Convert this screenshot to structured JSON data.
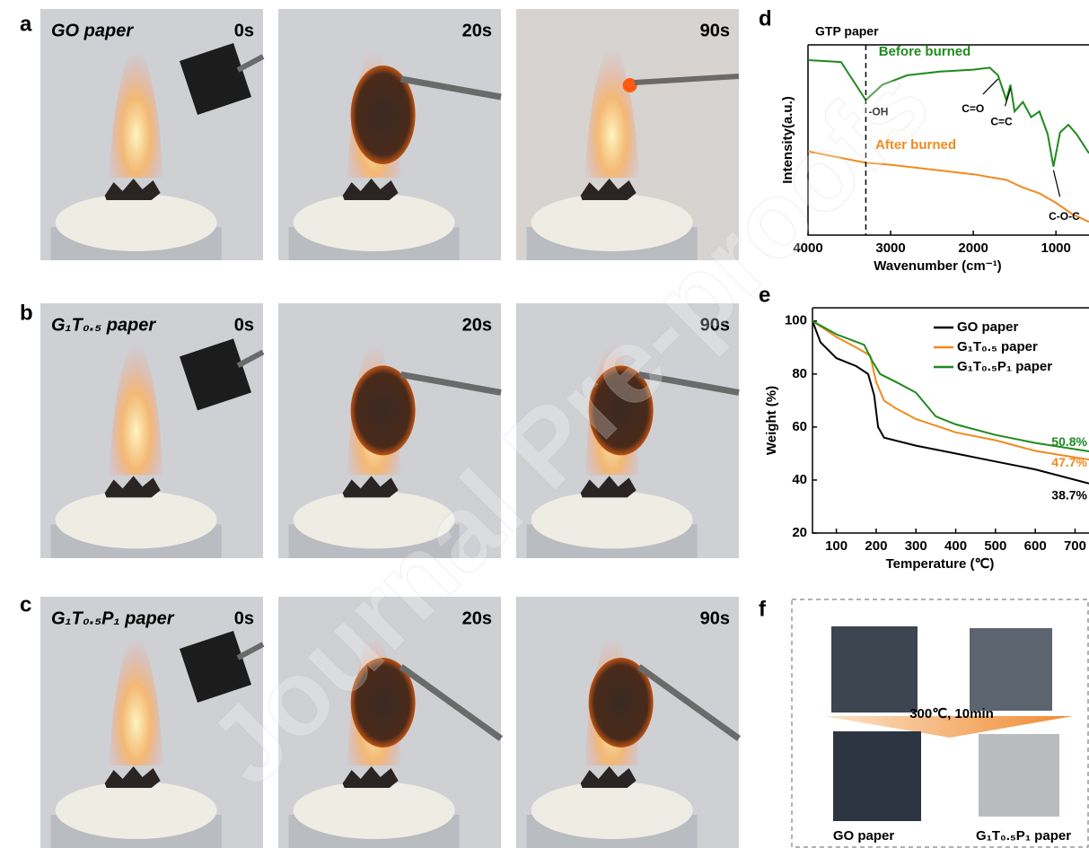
{
  "panel_letters": [
    "a",
    "b",
    "c",
    "d",
    "e",
    "f"
  ],
  "photos": {
    "rows": [
      {
        "label": "GO paper",
        "times": [
          "0s",
          "20s",
          "90s"
        ]
      },
      {
        "label": "G₁T₀.₅ paper",
        "times": [
          "0s",
          "20s",
          "90s"
        ]
      },
      {
        "label": "G₁T₀.₅P₁ paper",
        "times": [
          "0s",
          "20s",
          "90s"
        ]
      }
    ]
  },
  "chart_data": [
    {
      "type": "line",
      "title": "GTP paper",
      "x_label": "Wavenumber (cm⁻¹)",
      "y_label": "Intensity(a.u.)",
      "xlim": [
        4000,
        600
      ],
      "xticks": [
        4000,
        3000,
        2000,
        1000
      ],
      "ylim": [
        0,
        1
      ],
      "series": [
        {
          "name": "Before burned",
          "color": "#1e8a1e",
          "x": [
            4000,
            3600,
            3300,
            3100,
            2800,
            2400,
            2000,
            1800,
            1700,
            1600,
            1550,
            1500,
            1400,
            1300,
            1200,
            1100,
            1030,
            950,
            850,
            750,
            600
          ],
          "values": [
            0.92,
            0.91,
            0.71,
            0.79,
            0.84,
            0.86,
            0.87,
            0.88,
            0.84,
            0.71,
            0.79,
            0.65,
            0.7,
            0.62,
            0.65,
            0.53,
            0.36,
            0.54,
            0.58,
            0.53,
            0.43
          ]
        },
        {
          "name": "After burned",
          "color": "#f08a1c",
          "x": [
            4000,
            3300,
            3000,
            2000,
            1600,
            1400,
            1200,
            1000,
            800,
            600
          ],
          "values": [
            0.44,
            0.38,
            0.37,
            0.32,
            0.29,
            0.25,
            0.22,
            0.17,
            0.11,
            0.07
          ]
        }
      ],
      "annotations": [
        {
          "text": "-OH",
          "x": 3300
        },
        {
          "text": "C=O",
          "x": 1700
        },
        {
          "text": "C=C",
          "x": 1550
        },
        {
          "text": "C-O-C",
          "x": 1030
        }
      ]
    },
    {
      "type": "line",
      "x_label": "Temperature (℃)",
      "y_label": "Weight (%)",
      "xlim": [
        40,
        735
      ],
      "xticks": [
        100,
        200,
        300,
        400,
        500,
        600,
        700
      ],
      "ylim": [
        20,
        105
      ],
      "yticks": [
        20,
        40,
        60,
        80,
        100
      ],
      "legend": "upper right",
      "series": [
        {
          "name": "GO paper",
          "color": "#000000",
          "x": [
            40,
            60,
            100,
            150,
            180,
            195,
            205,
            220,
            300,
            400,
            500,
            600,
            735
          ],
          "values": [
            100,
            92,
            86,
            83,
            80,
            72,
            60,
            56,
            53,
            50,
            47,
            44,
            38.7
          ],
          "end_label": {
            "text": "38.7%",
            "value": 38.7
          }
        },
        {
          "name": "G₁T₀.₅ paper",
          "color": "#f08a1c",
          "x": [
            40,
            100,
            150,
            185,
            200,
            220,
            250,
            300,
            400,
            500,
            600,
            735
          ],
          "values": [
            100,
            94,
            90,
            87,
            77,
            70,
            67,
            63,
            58,
            55,
            51,
            47.7
          ],
          "end_label": {
            "text": "47.7%",
            "value": 47.7
          }
        },
        {
          "name": "G₁T₀.₅P₁ paper",
          "color": "#1e8a1e",
          "x": [
            40,
            100,
            170,
            190,
            210,
            250,
            300,
            350,
            400,
            500,
            600,
            735
          ],
          "values": [
            100,
            95,
            91,
            85,
            80,
            77,
            73,
            64,
            61,
            57,
            54,
            50.8
          ],
          "end_label": {
            "text": "50.8%",
            "value": 50.8
          }
        }
      ]
    }
  ],
  "panel_f": {
    "arrow_label": "300℃, 10min",
    "labels": [
      "GO paper",
      "G₁T₀.₅P₁ paper"
    ]
  },
  "watermark": "Journal Pre-proofs"
}
